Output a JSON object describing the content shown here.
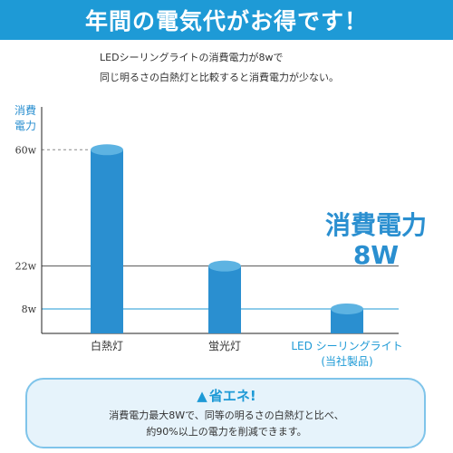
{
  "banner": {
    "title": "年間の電気代がお得です！"
  },
  "description": {
    "line1": "LEDシーリングライトの消費電力が8wで",
    "line2": "同じ明るさの白熱灯と比較すると消費電力が少ない。"
  },
  "callout": {
    "line1": "消費電力",
    "line2": "8W"
  },
  "footer": {
    "icon": "triangle-icon",
    "title": "省エネ!",
    "line1": "消費電力最大8Wで、同等の明るさの白熱灯と比べ、",
    "line2": "約90%以上の電力を削減できます。"
  },
  "colors": {
    "accent": "#1e9ad6",
    "bar": "#2a8fd0",
    "bar_top": "#5db3e2",
    "led_line": "#1e9ad6",
    "box_bg": "#e6f3fb",
    "box_border": "#7fc4ea"
  },
  "chart_data": {
    "type": "bar",
    "ylabel_lines": [
      "消費",
      "電力"
    ],
    "yticks": [
      {
        "label": "60w",
        "value": 60,
        "style": "dashed"
      },
      {
        "label": "22w",
        "value": 22,
        "style": "solid"
      },
      {
        "label": "8w",
        "value": 8,
        "style": "solid-blue"
      }
    ],
    "categories": [
      {
        "label": "白熱灯",
        "sub": ""
      },
      {
        "label": "蛍光灯",
        "sub": ""
      },
      {
        "label": "LED シーリングライト",
        "sub": "(当社製品)"
      }
    ],
    "values": [
      60,
      22,
      8
    ],
    "ylim": [
      0,
      66
    ]
  }
}
